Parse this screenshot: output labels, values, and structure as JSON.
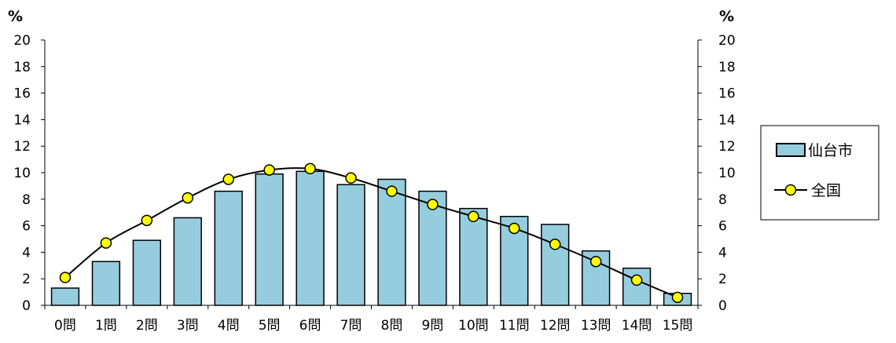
{
  "chart_data": {
    "type": "bar",
    "unit_left": "%",
    "unit_right": "%",
    "categories": [
      "0問",
      "1問",
      "2問",
      "3問",
      "4問",
      "5問",
      "6問",
      "7問",
      "8問",
      "9問",
      "10問",
      "11問",
      "12問",
      "13問",
      "14問",
      "15問"
    ],
    "ylim": [
      0,
      20
    ],
    "yticks": [
      "0",
      "2",
      "4",
      "6",
      "8",
      "10",
      "12",
      "14",
      "16",
      "18",
      "20"
    ],
    "series": [
      {
        "name": "仙台市",
        "kind": "bar",
        "color": "#96CDDE",
        "values": [
          1.3,
          3.3,
          4.9,
          6.6,
          8.6,
          9.9,
          10.1,
          9.1,
          9.5,
          8.6,
          7.3,
          6.7,
          6.1,
          4.1,
          2.8,
          0.9
        ]
      },
      {
        "name": "全国",
        "kind": "line",
        "color": "#FFFF00",
        "values": [
          2.1,
          4.7,
          6.4,
          8.1,
          9.5,
          10.2,
          10.3,
          9.6,
          8.6,
          7.6,
          6.7,
          5.8,
          4.6,
          3.3,
          1.9,
          0.6
        ]
      }
    ],
    "grid": false,
    "legend_position": "right"
  }
}
